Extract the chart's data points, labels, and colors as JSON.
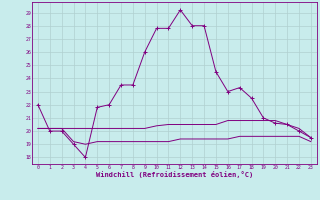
{
  "xlabel": "Windchill (Refroidissement éolien,°C)",
  "bg_color": "#c8ecec",
  "grid_color": "#b0d0d0",
  "line_color": "#800080",
  "x_ticks": [
    0,
    1,
    2,
    3,
    4,
    5,
    6,
    7,
    8,
    9,
    10,
    11,
    12,
    13,
    14,
    15,
    16,
    17,
    18,
    19,
    20,
    21,
    22,
    23
  ],
  "y_ticks": [
    18,
    19,
    20,
    21,
    22,
    23,
    24,
    25,
    26,
    27,
    28,
    29
  ],
  "ylim": [
    17.5,
    29.8
  ],
  "xlim": [
    -0.5,
    23.5
  ],
  "series1": [
    22,
    20,
    20,
    19,
    18,
    21.8,
    22,
    23.5,
    23.5,
    26,
    27.8,
    27.8,
    29.2,
    28,
    28,
    24.5,
    23,
    23.3,
    22.5,
    21,
    20.6,
    20.5,
    20,
    19.5
  ],
  "series2": [
    20.2,
    20.2,
    20.2,
    20.2,
    20.2,
    20.2,
    20.2,
    20.2,
    20.2,
    20.2,
    20.4,
    20.5,
    20.5,
    20.5,
    20.5,
    20.5,
    20.8,
    20.8,
    20.8,
    20.8,
    20.8,
    20.5,
    20.2,
    19.5
  ],
  "series3": [
    20.2,
    20.2,
    20.2,
    19.2,
    19.0,
    19.2,
    19.2,
    19.2,
    19.2,
    19.2,
    19.2,
    19.2,
    19.4,
    19.4,
    19.4,
    19.4,
    19.4,
    19.6,
    19.6,
    19.6,
    19.6,
    19.6,
    19.6,
    19.2
  ]
}
